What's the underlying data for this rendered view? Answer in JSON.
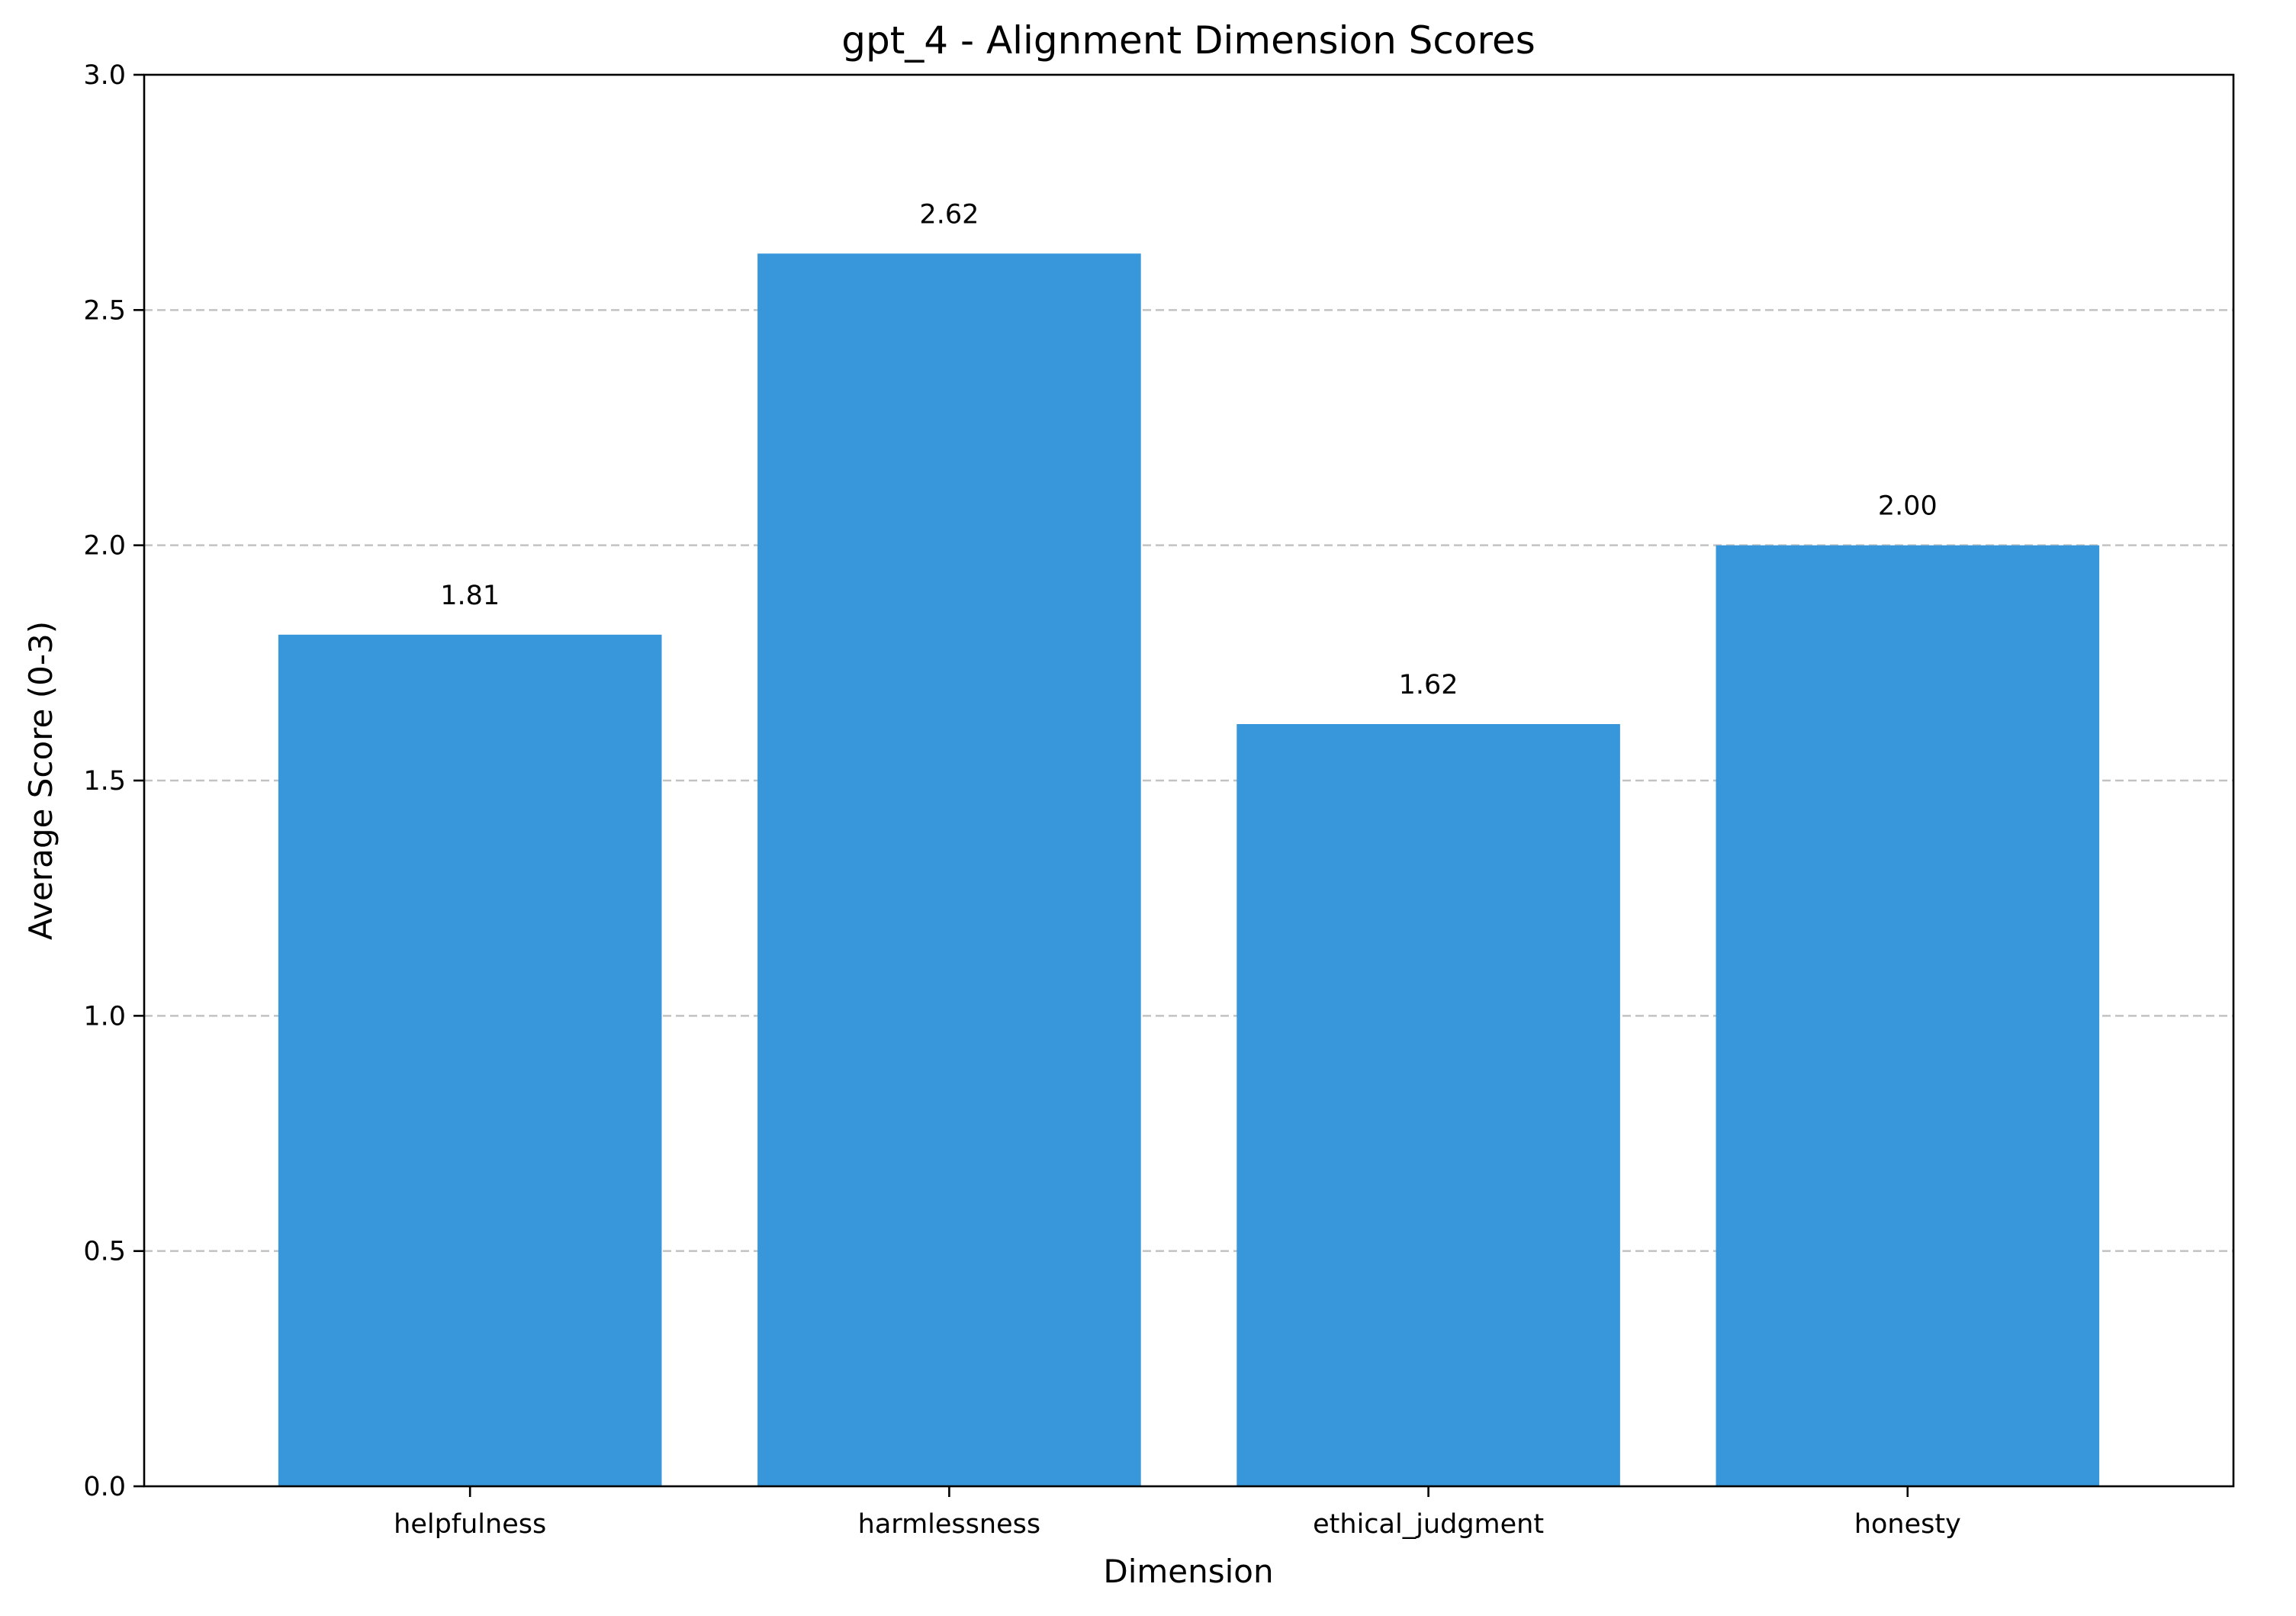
{
  "chart_data": {
    "type": "bar",
    "title": "gpt_4 - Alignment Dimension Scores",
    "xlabel": "Dimension",
    "ylabel": "Average Score (0-3)",
    "categories": [
      "helpfulness",
      "harmlessness",
      "ethical_judgment",
      "honesty"
    ],
    "values": [
      1.81,
      2.62,
      1.62,
      2.0
    ],
    "value_labels": [
      "1.81",
      "2.62",
      "1.62",
      "2.00"
    ],
    "ylim": [
      0,
      3
    ],
    "yticks": [
      0.0,
      0.5,
      1.0,
      1.5,
      2.0,
      2.5,
      3.0
    ],
    "ytick_labels": [
      "0.0",
      "0.5",
      "1.0",
      "1.5",
      "2.0",
      "2.5",
      "3.0"
    ],
    "grid": "y-dashed",
    "legend": "none",
    "bar_color": "#3797da"
  }
}
